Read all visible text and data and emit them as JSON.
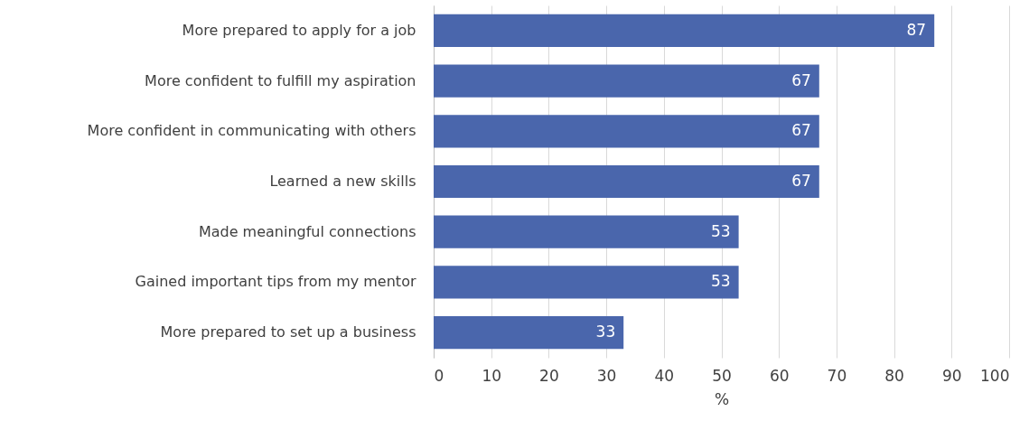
{
  "chart_data": {
    "type": "bar",
    "orientation": "horizontal",
    "xlabel": "%",
    "categories": [
      "More prepared to apply for a job",
      "More confident to fulfill my aspiration",
      "More confident in communicating with others",
      "Learned a new skills",
      "Made meaningful connections",
      "Gained important tips from my mentor",
      "More prepared to set up a business"
    ],
    "values": [
      87,
      67,
      67,
      67,
      53,
      53,
      33
    ],
    "color": "#4a66ac",
    "xlim": [
      0,
      100
    ],
    "xticks": [
      0,
      10,
      20,
      30,
      40,
      50,
      60,
      70,
      80,
      90,
      100
    ],
    "grid": "x",
    "data_labels": true
  }
}
